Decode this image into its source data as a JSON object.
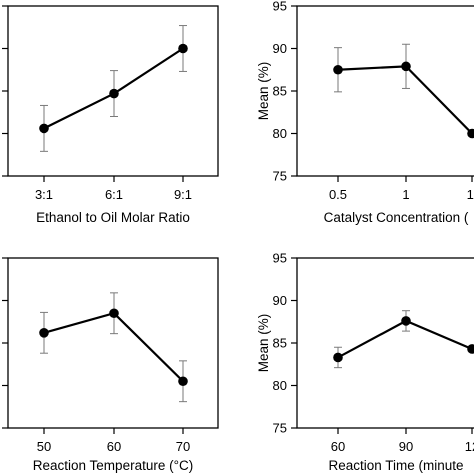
{
  "chart_data": [
    {
      "type": "line",
      "xlabel": "Ethanol to Oil Molar Ratio",
      "ylabel": "",
      "categories": [
        "3:1",
        "6:1",
        "9:1"
      ],
      "values": [
        80.6,
        84.7,
        90.0
      ],
      "error": [
        2.7,
        2.7,
        2.7
      ],
      "ylim": [
        75,
        95
      ],
      "yticks": [
        "",
        "",
        "",
        "",
        ""
      ],
      "grid": false,
      "legend": "none"
    },
    {
      "type": "line",
      "xlabel": "Catalyst Concentration (",
      "ylabel": "Mean (%)",
      "categories": [
        "0.5",
        "1",
        "1."
      ],
      "values": [
        87.5,
        87.9,
        80.0
      ],
      "error": [
        2.6,
        2.6,
        0
      ],
      "ylim": [
        75,
        95
      ],
      "yticks": [
        "75",
        "80",
        "85",
        "90",
        "95"
      ],
      "grid": false,
      "legend": "none"
    },
    {
      "type": "line",
      "xlabel": "Reaction Temperature (°C)",
      "ylabel": "",
      "categories": [
        "50",
        "60",
        "70"
      ],
      "values": [
        86.2,
        88.5,
        80.5
      ],
      "error": [
        2.4,
        2.4,
        2.4
      ],
      "ylim": [
        75,
        95
      ],
      "yticks": [
        "",
        "",
        "",
        "",
        ""
      ],
      "grid": false,
      "legend": "none"
    },
    {
      "type": "line",
      "xlabel": "Reaction Time (minute",
      "ylabel": "Mean (%)",
      "categories": [
        "60",
        "90",
        "12"
      ],
      "values": [
        83.3,
        87.6,
        84.3
      ],
      "error": [
        1.2,
        1.2,
        0
      ],
      "ylim": [
        75,
        95
      ],
      "yticks": [
        "75",
        "80",
        "85",
        "90",
        "95"
      ],
      "grid": false,
      "legend": "none"
    }
  ]
}
